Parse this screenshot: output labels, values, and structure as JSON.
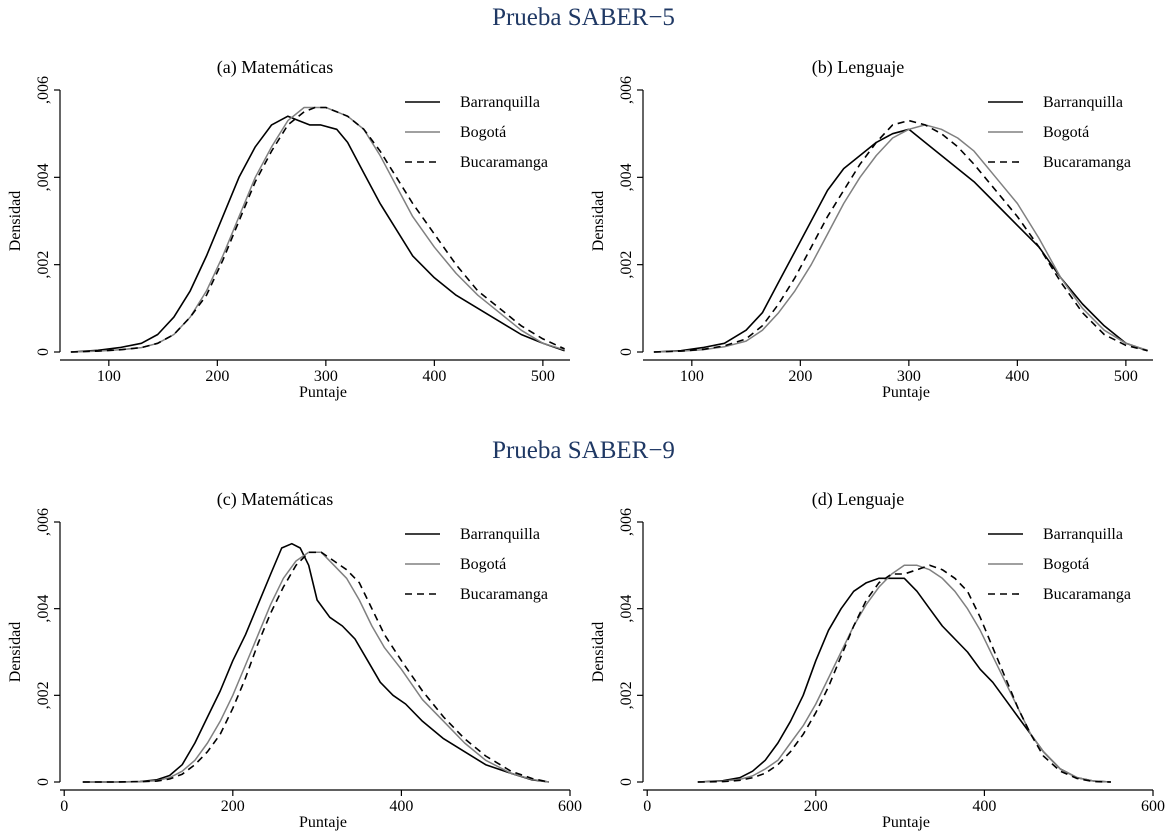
{
  "sections": [
    {
      "title": "Prueba SABER−5"
    },
    {
      "title": "Prueba SABER−9"
    }
  ],
  "chart_data": [
    {
      "type": "line",
      "title": "(a) Matemáticas",
      "xlabel": "Puntaje",
      "ylabel": "Densidad",
      "xlim": [
        55,
        525
      ],
      "ylim": [
        0,
        0.006
      ],
      "xticks": [
        100,
        200,
        300,
        400,
        500
      ],
      "yticks": [
        0,
        0.002,
        0.004,
        0.006
      ],
      "ytick_labels": [
        "0",
        ",002",
        ",004",
        ",006"
      ],
      "grid": false,
      "legend_position": "top-right",
      "series": [
        {
          "name": "Barranquilla",
          "color": "#000000",
          "dash": "solid",
          "x": [
            65,
            90,
            110,
            130,
            145,
            160,
            175,
            190,
            205,
            220,
            235,
            250,
            265,
            275,
            285,
            295,
            310,
            320,
            335,
            350,
            365,
            380,
            400,
            420,
            440,
            460,
            480,
            500,
            520
          ],
          "y": [
            0,
            4e-05,
            0.0001,
            0.0002,
            0.0004,
            0.0008,
            0.0014,
            0.0022,
            0.0031,
            0.004,
            0.0047,
            0.0052,
            0.0054,
            0.0053,
            0.0052,
            0.0052,
            0.0051,
            0.0048,
            0.0041,
            0.0034,
            0.0028,
            0.0022,
            0.0017,
            0.0013,
            0.001,
            0.0007,
            0.0004,
            0.0002,
            3e-05
          ]
        },
        {
          "name": "Bogotá",
          "color": "#808080",
          "dash": "solid",
          "x": [
            65,
            90,
            110,
            130,
            145,
            160,
            175,
            190,
            205,
            220,
            235,
            250,
            265,
            280,
            290,
            300,
            310,
            320,
            335,
            350,
            365,
            380,
            400,
            420,
            440,
            460,
            480,
            500,
            520
          ],
          "y": [
            0,
            2e-05,
            5e-05,
            0.0001,
            0.0002,
            0.0004,
            0.0008,
            0.0014,
            0.0022,
            0.0031,
            0.004,
            0.0047,
            0.0053,
            0.0056,
            0.0056,
            0.0056,
            0.0055,
            0.0054,
            0.0051,
            0.0045,
            0.0038,
            0.0031,
            0.0024,
            0.0018,
            0.0013,
            0.0009,
            0.0005,
            0.0002,
            5e-05
          ]
        },
        {
          "name": "Bucaramanga",
          "color": "#000000",
          "dash": "dashed",
          "x": [
            65,
            90,
            110,
            130,
            145,
            160,
            175,
            190,
            205,
            220,
            235,
            250,
            265,
            280,
            290,
            300,
            310,
            320,
            335,
            350,
            365,
            380,
            400,
            420,
            440,
            460,
            480,
            500,
            520
          ],
          "y": [
            0,
            2e-05,
            5e-05,
            0.0001,
            0.0002,
            0.0004,
            0.0008,
            0.0013,
            0.0021,
            0.003,
            0.0039,
            0.0046,
            0.0052,
            0.0055,
            0.0056,
            0.0056,
            0.0055,
            0.0054,
            0.0051,
            0.0046,
            0.004,
            0.0034,
            0.0027,
            0.002,
            0.0014,
            0.001,
            0.0006,
            0.0003,
            7e-05
          ]
        }
      ]
    },
    {
      "type": "line",
      "title": "(b) Lenguaje",
      "xlabel": "Puntaje",
      "ylabel": "Densidad",
      "xlim": [
        55,
        525
      ],
      "ylim": [
        0,
        0.006
      ],
      "xticks": [
        100,
        200,
        300,
        400,
        500
      ],
      "yticks": [
        0,
        0.002,
        0.004,
        0.006
      ],
      "ytick_labels": [
        "0",
        ",002",
        ",004",
        ",006"
      ],
      "grid": false,
      "legend_position": "top-right",
      "series": [
        {
          "name": "Barranquilla",
          "color": "#000000",
          "dash": "solid",
          "x": [
            65,
            90,
            110,
            130,
            150,
            165,
            180,
            195,
            210,
            225,
            240,
            255,
            270,
            285,
            300,
            315,
            330,
            345,
            360,
            380,
            400,
            420,
            440,
            460,
            480,
            500,
            520
          ],
          "y": [
            0,
            3e-05,
            0.0001,
            0.0002,
            0.0005,
            0.0009,
            0.0016,
            0.0023,
            0.003,
            0.0037,
            0.0042,
            0.0045,
            0.0048,
            0.005,
            0.0051,
            0.0048,
            0.0045,
            0.0042,
            0.0039,
            0.0034,
            0.0029,
            0.0024,
            0.0017,
            0.0011,
            0.0006,
            0.0002,
            3e-05
          ]
        },
        {
          "name": "Bogotá",
          "color": "#808080",
          "dash": "solid",
          "x": [
            65,
            90,
            110,
            130,
            150,
            165,
            180,
            195,
            210,
            225,
            240,
            255,
            270,
            285,
            300,
            315,
            330,
            345,
            360,
            380,
            400,
            420,
            440,
            460,
            480,
            500,
            520
          ],
          "y": [
            0,
            2e-05,
            5e-05,
            0.00012,
            0.00025,
            0.0005,
            0.0009,
            0.0014,
            0.002,
            0.0027,
            0.0034,
            0.004,
            0.0045,
            0.0049,
            0.0051,
            0.0052,
            0.0051,
            0.0049,
            0.0046,
            0.004,
            0.0034,
            0.0026,
            0.0017,
            0.001,
            0.0005,
            0.0002,
            4e-05
          ]
        },
        {
          "name": "Bucaramanga",
          "color": "#000000",
          "dash": "dashed",
          "x": [
            65,
            90,
            110,
            130,
            150,
            165,
            180,
            195,
            210,
            225,
            240,
            255,
            270,
            285,
            300,
            315,
            330,
            345,
            360,
            380,
            400,
            420,
            440,
            460,
            480,
            500,
            520
          ],
          "y": [
            0,
            2e-05,
            6e-05,
            0.00014,
            0.0003,
            0.0006,
            0.0011,
            0.0017,
            0.0024,
            0.0031,
            0.0037,
            0.0043,
            0.0048,
            0.0052,
            0.0053,
            0.0052,
            0.005,
            0.0047,
            0.0043,
            0.0037,
            0.0031,
            0.0024,
            0.0016,
            0.0009,
            0.0004,
            0.00015,
            3e-05
          ]
        }
      ]
    },
    {
      "type": "line",
      "title": "(c) Matemáticas",
      "xlabel": "Puntaje",
      "ylabel": "Densidad",
      "xlim": [
        -5,
        600
      ],
      "ylim": [
        0,
        0.006
      ],
      "xticks": [
        0,
        200,
        400,
        600
      ],
      "yticks": [
        0,
        0.002,
        0.004,
        0.006
      ],
      "ytick_labels": [
        "0",
        ",002",
        ",004",
        ",006"
      ],
      "grid": false,
      "legend_position": "top-right",
      "series": [
        {
          "name": "Barranquilla",
          "color": "#000000",
          "dash": "solid",
          "x": [
            22,
            60,
            90,
            110,
            125,
            140,
            155,
            170,
            185,
            200,
            215,
            230,
            245,
            258,
            270,
            280,
            290,
            300,
            315,
            330,
            345,
            360,
            375,
            390,
            405,
            425,
            450,
            475,
            500,
            530,
            555,
            575
          ],
          "y": [
            0,
            0,
            1e-05,
            5e-05,
            0.00015,
            0.0004,
            0.0009,
            0.0015,
            0.0021,
            0.0028,
            0.0034,
            0.0041,
            0.0048,
            0.0054,
            0.0055,
            0.0054,
            0.005,
            0.0042,
            0.0038,
            0.0036,
            0.0033,
            0.0028,
            0.0023,
            0.002,
            0.0018,
            0.0014,
            0.001,
            0.0007,
            0.0004,
            0.0002,
            5e-05,
            0
          ]
        },
        {
          "name": "Bogotá",
          "color": "#808080",
          "dash": "solid",
          "x": [
            22,
            60,
            90,
            110,
            125,
            140,
            155,
            170,
            185,
            200,
            215,
            230,
            245,
            260,
            275,
            290,
            305,
            320,
            335,
            350,
            365,
            380,
            400,
            425,
            450,
            475,
            500,
            530,
            555,
            575
          ],
          "y": [
            0,
            0,
            1e-05,
            3e-05,
            0.0001,
            0.00025,
            0.0005,
            0.0009,
            0.0014,
            0.002,
            0.0027,
            0.0034,
            0.0041,
            0.0047,
            0.0051,
            0.0053,
            0.0053,
            0.005,
            0.0047,
            0.0042,
            0.0036,
            0.0031,
            0.0026,
            0.0019,
            0.0014,
            0.0009,
            0.0005,
            0.0002,
            6e-05,
            0
          ]
        },
        {
          "name": "Bucaramanga",
          "color": "#000000",
          "dash": "dashed",
          "x": [
            22,
            60,
            90,
            110,
            125,
            140,
            155,
            170,
            185,
            200,
            215,
            230,
            245,
            260,
            275,
            290,
            305,
            320,
            335,
            350,
            365,
            380,
            400,
            425,
            450,
            475,
            500,
            530,
            555,
            575
          ],
          "y": [
            0,
            0,
            1e-05,
            2e-05,
            7e-05,
            0.00018,
            0.0004,
            0.0007,
            0.0011,
            0.0017,
            0.0024,
            0.0032,
            0.0039,
            0.0045,
            0.005,
            0.0053,
            0.0053,
            0.0051,
            0.0049,
            0.0046,
            0.004,
            0.0034,
            0.0028,
            0.0021,
            0.0015,
            0.001,
            0.0006,
            0.00025,
            8e-05,
            0
          ]
        }
      ]
    },
    {
      "type": "line",
      "title": "(d) Lenguaje",
      "xlabel": "Puntaje",
      "ylabel": "Densidad",
      "xlim": [
        -5,
        600
      ],
      "ylim": [
        0,
        0.006
      ],
      "xticks": [
        0,
        200,
        400,
        600
      ],
      "yticks": [
        0,
        0.002,
        0.004,
        0.006
      ],
      "ytick_labels": [
        "0",
        ",002",
        ",004",
        ",006"
      ],
      "grid": false,
      "legend_position": "top-right",
      "series": [
        {
          "name": "Barranquilla",
          "color": "#000000",
          "dash": "solid",
          "x": [
            60,
            90,
            110,
            125,
            140,
            155,
            170,
            185,
            200,
            215,
            230,
            245,
            260,
            275,
            290,
            305,
            320,
            335,
            350,
            365,
            380,
            395,
            410,
            425,
            440,
            455,
            470,
            490,
            510,
            530,
            550
          ],
          "y": [
            0,
            3e-05,
            0.0001,
            0.00025,
            0.0005,
            0.0009,
            0.0014,
            0.002,
            0.0028,
            0.0035,
            0.004,
            0.0044,
            0.0046,
            0.0047,
            0.0047,
            0.0047,
            0.0044,
            0.004,
            0.0036,
            0.0033,
            0.003,
            0.0026,
            0.0023,
            0.0019,
            0.0015,
            0.0011,
            0.0007,
            0.0003,
            0.0001,
            2e-05,
            0
          ]
        },
        {
          "name": "Bogotá",
          "color": "#808080",
          "dash": "solid",
          "x": [
            60,
            90,
            110,
            125,
            140,
            155,
            170,
            185,
            200,
            215,
            230,
            245,
            260,
            275,
            290,
            305,
            320,
            335,
            350,
            365,
            380,
            395,
            410,
            425,
            440,
            455,
            470,
            490,
            510,
            530,
            550
          ],
          "y": [
            0,
            2e-05,
            6e-05,
            0.00014,
            0.0003,
            0.0005,
            0.0009,
            0.0013,
            0.0018,
            0.0024,
            0.003,
            0.0036,
            0.0041,
            0.0045,
            0.0048,
            0.005,
            0.005,
            0.0049,
            0.0047,
            0.0044,
            0.004,
            0.0035,
            0.0029,
            0.0023,
            0.0017,
            0.0011,
            0.0007,
            0.0003,
            0.0001,
            2e-05,
            0
          ]
        },
        {
          "name": "Bucaramanga",
          "color": "#000000",
          "dash": "dashed",
          "x": [
            60,
            90,
            110,
            125,
            140,
            155,
            170,
            185,
            200,
            215,
            230,
            245,
            260,
            275,
            290,
            305,
            320,
            335,
            350,
            365,
            380,
            395,
            410,
            425,
            440,
            455,
            470,
            490,
            510,
            530,
            550
          ],
          "y": [
            0,
            1e-05,
            4e-05,
            0.0001,
            0.0002,
            0.0004,
            0.0007,
            0.0011,
            0.0016,
            0.0022,
            0.0029,
            0.0036,
            0.0042,
            0.0046,
            0.0048,
            0.0048,
            0.0049,
            0.005,
            0.0049,
            0.0047,
            0.0044,
            0.0038,
            0.0031,
            0.0024,
            0.0017,
            0.0011,
            0.0006,
            0.00025,
            8e-05,
            1e-05,
            0
          ]
        }
      ]
    }
  ]
}
